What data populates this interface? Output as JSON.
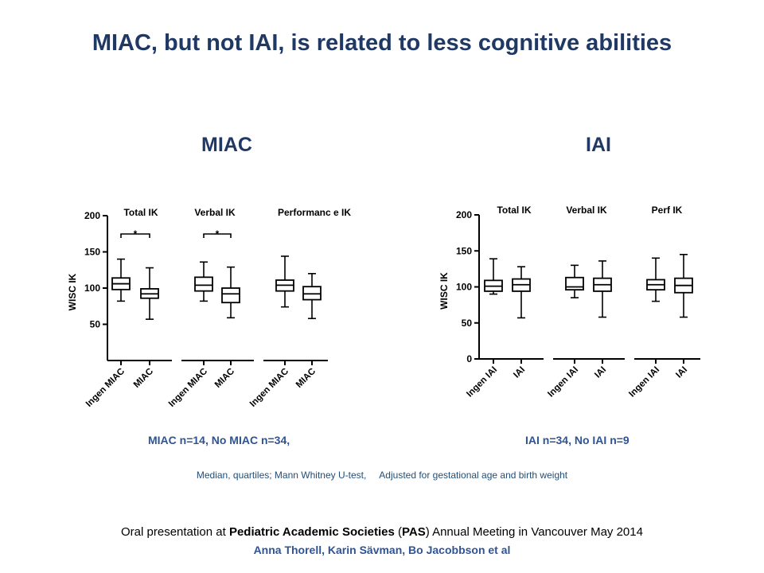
{
  "slide": {
    "title": "MIAC, but not IAI, is related to less cognitive abilities",
    "method_note_a": "Median, quartiles; Mann Whitney U-test,",
    "method_note_b": "Adjusted for gestational age and birth weight",
    "footer_presentation_pre": "Oral presentation at ",
    "footer_presentation_bold1": "Pediatric Academic Societies",
    "footer_presentation_mid": " (",
    "footer_presentation_bold2": "PAS",
    "footer_presentation_post": ") Annual Meeting in Vancouver May 2014",
    "footer_authors": "Anna Thorell, Karin Sävman, Bo Jacobbson et al"
  },
  "chart_data": [
    {
      "type": "boxplot",
      "title": "MIAC",
      "ylabel": "WISC IK",
      "ylim": [
        0,
        200
      ],
      "yticks": [
        50,
        100,
        150,
        200
      ],
      "caption": "MIAC n=14, No MIAC n=34,",
      "groups": [
        {
          "label": "Total IK",
          "significance": "*",
          "boxes": [
            {
              "category": "Ingen MIAC",
              "min": 82,
              "q1": 98,
              "median": 106,
              "q3": 114,
              "max": 140
            },
            {
              "category": "MIAC",
              "min": 57,
              "q1": 86,
              "median": 92,
              "q3": 99,
              "max": 128
            }
          ]
        },
        {
          "label": "Verbal IK",
          "significance": "*",
          "boxes": [
            {
              "category": "Ingen MIAC",
              "min": 82,
              "q1": 96,
              "median": 104,
              "q3": 115,
              "max": 136
            },
            {
              "category": "MIAC",
              "min": 59,
              "q1": 80,
              "median": 92,
              "q3": 100,
              "max": 129
            }
          ]
        },
        {
          "label": "Performanc e IK",
          "significance": "",
          "boxes": [
            {
              "category": "Ingen MIAC",
              "min": 74,
              "q1": 96,
              "median": 104,
              "q3": 111,
              "max": 144
            },
            {
              "category": "MIAC",
              "min": 58,
              "q1": 84,
              "median": 92,
              "q3": 102,
              "max": 120
            }
          ]
        }
      ]
    },
    {
      "type": "boxplot",
      "title": "IAI",
      "ylabel": "WISC IK",
      "ylim": [
        0,
        200
      ],
      "yticks": [
        0,
        50,
        100,
        150,
        200
      ],
      "caption": "IAI n=34, No IAI n=9",
      "groups": [
        {
          "label": "Total IK",
          "significance": "",
          "boxes": [
            {
              "category": "Ingen IAI",
              "min": 90,
              "q1": 94,
              "median": 101,
              "q3": 109,
              "max": 139
            },
            {
              "category": "IAI",
              "min": 57,
              "q1": 94,
              "median": 103,
              "q3": 111,
              "max": 128
            }
          ]
        },
        {
          "label": "Verbal IK",
          "significance": "",
          "boxes": [
            {
              "category": "Ingen IAI",
              "min": 85,
              "q1": 96,
              "median": 100,
              "q3": 113,
              "max": 130
            },
            {
              "category": "IAI",
              "min": 58,
              "q1": 94,
              "median": 103,
              "q3": 112,
              "max": 136
            }
          ]
        },
        {
          "label": "Perf IK",
          "significance": "",
          "boxes": [
            {
              "category": "Ingen IAI",
              "min": 80,
              "q1": 96,
              "median": 103,
              "q3": 110,
              "max": 140
            },
            {
              "category": "IAI",
              "min": 58,
              "q1": 92,
              "median": 102,
              "q3": 112,
              "max": 145
            }
          ]
        }
      ]
    }
  ]
}
